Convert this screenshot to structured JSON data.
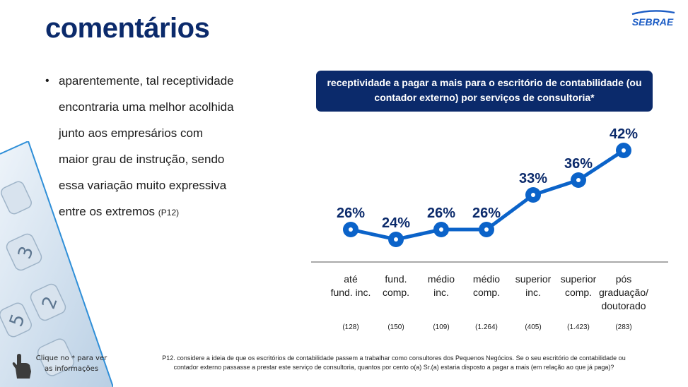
{
  "header": {
    "title": "comentários",
    "logo_text": "SEBRAE"
  },
  "bullet": {
    "text": "aparentemente, tal receptividade encontraria uma melhor acolhida junto aos empresários com maior grau de instrução, sendo essa variação muito expressiva entre os extremos",
    "ref": "(P12)"
  },
  "chart_data": {
    "type": "line",
    "title": "receptividade a pagar a mais para o escritório de contabilidade (ou contador externo) por serviços de consultoria*",
    "categories": [
      [
        "até",
        "fund. inc."
      ],
      [
        "fund.",
        "comp."
      ],
      [
        "médio",
        "inc."
      ],
      [
        "médio",
        "comp."
      ],
      [
        "superior",
        "inc."
      ],
      [
        "superior",
        "comp."
      ],
      [
        "pós",
        "graduação/",
        "doutorado"
      ]
    ],
    "values": [
      26,
      24,
      26,
      26,
      33,
      36,
      42
    ],
    "value_labels": [
      "26%",
      "24%",
      "26%",
      "26%",
      "33%",
      "36%",
      "42%"
    ],
    "sample_sizes": [
      "(128)",
      "(150)",
      "(109)",
      "(1.264)",
      "(405)",
      "(1.423)",
      "(283)"
    ],
    "series_color": "#0b63c9",
    "ylim": [
      20,
      45
    ],
    "grid": false
  },
  "footnote": "P12. considere a ideia de que os escritórios de contabilidade passem a trabalhar como consultores dos Pequenos Negócios. Se o seu escritório de contabilidade ou contador externo passasse a prestar este serviço de consultoria, quantos por cento o(a) Sr.(a) estaria disposto a pagar a mais (em relação ao que já paga)?",
  "click_note": "Clique no * para ver as informações",
  "colors": {
    "title": "#0b2a6b",
    "banner": "#0b2a6b",
    "line": "#0b63c9"
  }
}
